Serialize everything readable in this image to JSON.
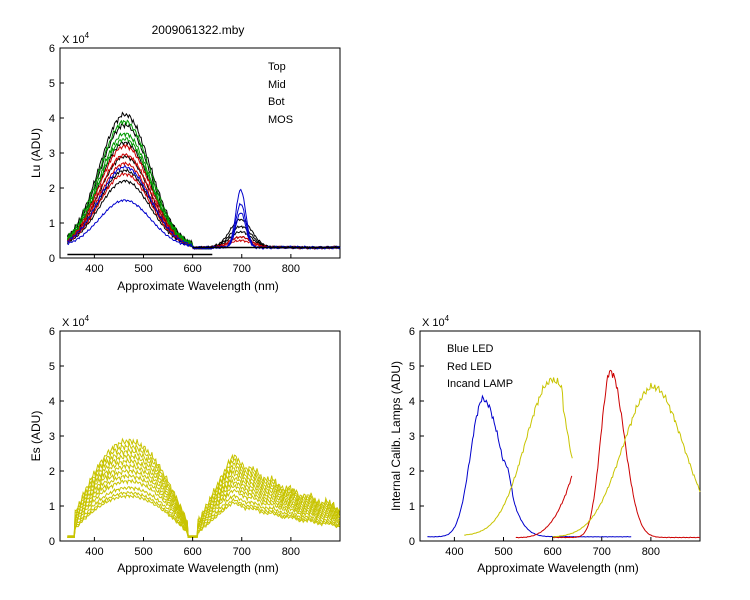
{
  "figure": {
    "title": "2009061322.mby"
  },
  "chart_data": [
    {
      "id": "lu",
      "type": "line",
      "xlabel": "Approximate Wavelength (nm)",
      "ylabel": "Lu (ADU)",
      "xlim": [
        330,
        900
      ],
      "ylim": [
        0,
        6
      ],
      "y_multiplier_label": "X 10",
      "y_multiplier_exp": "4",
      "xticks": [
        400,
        500,
        600,
        700,
        800
      ],
      "yticks": [
        0,
        1,
        2,
        3,
        4,
        5,
        6
      ],
      "legend_position": "top-right",
      "legend": [
        {
          "name": "Top",
          "color": "#000000"
        },
        {
          "name": "Mid",
          "color": "#cc0000"
        },
        {
          "name": "Bot",
          "color": "#009900"
        },
        {
          "name": "MOS",
          "color": "#0000cc"
        }
      ],
      "series": [
        {
          "name": "Top",
          "color": "#000000",
          "peaks": [
            4.1,
            3.8,
            3.3,
            2.9,
            2.5,
            2.2
          ],
          "peaks2": [
            1.1,
            0.9,
            0.75,
            0.6
          ]
        },
        {
          "name": "Mid",
          "color": "#cc0000",
          "peaks": [
            3.2,
            2.95,
            2.7,
            2.4
          ],
          "peaks2": [
            0.6,
            0.5
          ]
        },
        {
          "name": "Bot",
          "color": "#009900",
          "peaks": [
            3.9,
            3.55,
            3.4
          ],
          "peaks2": []
        },
        {
          "name": "MOS",
          "color": "#0000cc",
          "peaks": [
            2.6,
            1.65
          ],
          "peaks2": [
            1.95,
            1.55,
            1.3
          ]
        }
      ]
    },
    {
      "id": "es",
      "type": "line",
      "xlabel": "Approximate Wavelength (nm)",
      "ylabel": "Es (ADU)",
      "xlim": [
        330,
        900
      ],
      "ylim": [
        0,
        6
      ],
      "y_multiplier_label": "X 10",
      "y_multiplier_exp": "4",
      "xticks": [
        400,
        500,
        600,
        700,
        800
      ],
      "yticks": [
        0,
        1,
        2,
        3,
        4,
        5,
        6
      ],
      "color": "#c8c400",
      "scales": [
        3.0,
        2.85,
        2.7,
        2.55,
        2.4,
        2.25,
        2.1,
        1.95,
        1.8,
        1.6,
        1.45,
        1.35
      ]
    },
    {
      "id": "lamps",
      "type": "line",
      "xlabel": "Approximate Wavelength (nm)",
      "ylabel": "Internal Calib. Lamps (ADU)",
      "xlim": [
        330,
        900
      ],
      "ylim": [
        0,
        6
      ],
      "y_multiplier_label": "X 10",
      "y_multiplier_exp": "4",
      "xticks": [
        400,
        500,
        600,
        700,
        800
      ],
      "yticks": [
        0,
        1,
        2,
        3,
        4,
        5,
        6
      ],
      "legend_position": "top-left",
      "legend": [
        {
          "name": "Blue LED",
          "color": "#0000cc"
        },
        {
          "name": "Red LED",
          "color": "#cc0000"
        },
        {
          "name": "Incand LAMP",
          "color": "#c8c400"
        }
      ],
      "series": [
        {
          "name": "Blue LED",
          "color": "#0000cc",
          "peak_x": 458,
          "peak_y": 4.05,
          "x_range": [
            345,
            640
          ]
        },
        {
          "name": "Blue LED (tail)",
          "color": "#0000cc",
          "peak_x": 600,
          "peak_y": 0.15,
          "x_range": [
            600,
            760
          ]
        },
        {
          "name": "Red LED",
          "color": "#cc0000",
          "peak_x": 718,
          "peak_y": 4.85,
          "x_range": [
            600,
            900
          ]
        },
        {
          "name": "Red LED (low)",
          "color": "#cc0000",
          "peak_x": 640,
          "peak_y": 1.9,
          "x_range": [
            525,
            640
          ]
        },
        {
          "name": "Incand LAMP",
          "color": "#c8c400",
          "peak_x": 600,
          "peak_y": 4.6,
          "x_range": [
            420,
            640
          ]
        },
        {
          "name": "Incand LAMP (long)",
          "color": "#c8c400",
          "peak_x": 805,
          "peak_y": 4.4,
          "x_range": [
            600,
            900
          ]
        }
      ]
    }
  ]
}
